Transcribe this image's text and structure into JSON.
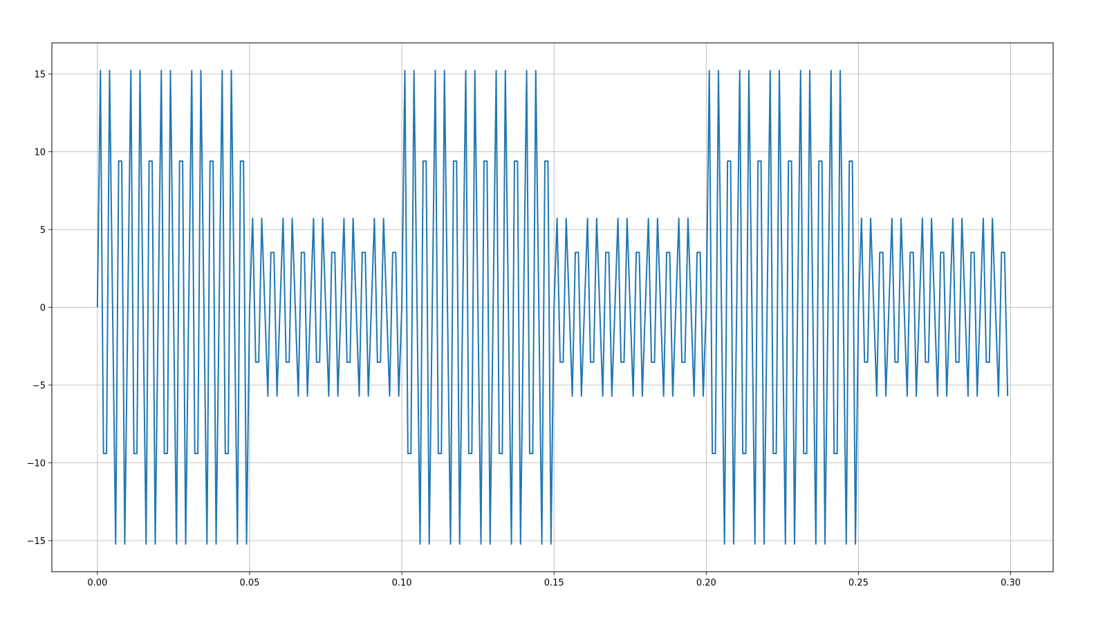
{
  "chart_data": {
    "type": "line",
    "x": [
      0,
      0.001,
      0.002,
      0.003,
      0.004,
      0.005,
      0.006,
      0.007,
      0.008,
      0.009,
      0.01,
      0.011,
      0.012,
      0.013,
      0.014,
      0.015,
      0.016,
      0.017,
      0.018,
      0.019,
      0.02,
      0.021,
      0.022,
      0.023,
      0.024,
      0.025,
      0.026,
      0.027,
      0.028,
      0.029,
      0.03,
      0.031,
      0.032,
      0.033,
      0.034,
      0.035,
      0.036,
      0.037,
      0.038,
      0.039,
      0.04,
      0.041,
      0.042,
      0.043,
      0.044,
      0.045,
      0.046,
      0.047,
      0.048,
      0.049,
      0.05,
      0.051,
      0.052,
      0.053,
      0.054,
      0.055,
      0.056,
      0.057,
      0.058,
      0.059,
      0.06,
      0.061,
      0.062,
      0.063,
      0.064,
      0.065,
      0.066,
      0.067,
      0.068,
      0.069,
      0.07,
      0.071,
      0.072,
      0.073,
      0.074,
      0.075,
      0.076,
      0.077,
      0.078,
      0.079,
      0.08,
      0.081,
      0.082,
      0.083,
      0.084,
      0.085,
      0.086,
      0.087,
      0.088,
      0.089,
      0.09,
      0.091,
      0.092,
      0.093,
      0.094,
      0.095,
      0.096,
      0.097,
      0.098,
      0.099,
      0.1,
      0.101,
      0.102,
      0.103,
      0.104,
      0.105,
      0.106,
      0.107,
      0.108,
      0.109,
      0.11,
      0.111,
      0.112,
      0.113,
      0.114,
      0.115,
      0.116,
      0.117,
      0.118,
      0.119,
      0.12,
      0.121,
      0.122,
      0.123,
      0.124,
      0.125,
      0.126,
      0.127,
      0.128,
      0.129,
      0.13,
      0.131,
      0.132,
      0.133,
      0.134,
      0.135,
      0.136,
      0.137,
      0.138,
      0.139,
      0.14,
      0.141,
      0.142,
      0.143,
      0.144,
      0.145,
      0.146,
      0.147,
      0.148,
      0.149,
      0.15,
      0.151,
      0.152,
      0.153,
      0.154,
      0.155,
      0.156,
      0.157,
      0.158,
      0.159,
      0.16,
      0.161,
      0.162,
      0.163,
      0.164,
      0.165,
      0.166,
      0.167,
      0.168,
      0.169,
      0.17,
      0.171,
      0.172,
      0.173,
      0.174,
      0.175,
      0.176,
      0.177,
      0.178,
      0.179,
      0.18,
      0.181,
      0.182,
      0.183,
      0.184,
      0.185,
      0.186,
      0.187,
      0.188,
      0.189,
      0.19,
      0.191,
      0.192,
      0.193,
      0.194,
      0.195,
      0.196,
      0.197,
      0.198,
      0.199,
      0.2,
      0.201,
      0.202,
      0.203,
      0.204,
      0.205,
      0.206,
      0.207,
      0.208,
      0.209,
      0.21,
      0.211,
      0.212,
      0.213,
      0.214,
      0.215,
      0.216,
      0.217,
      0.218,
      0.219,
      0.22,
      0.221,
      0.222,
      0.223,
      0.224,
      0.225,
      0.226,
      0.227,
      0.228,
      0.229,
      0.23,
      0.231,
      0.232,
      0.233,
      0.234,
      0.235,
      0.236,
      0.237,
      0.238,
      0.239,
      0.24,
      0.241,
      0.242,
      0.243,
      0.244,
      0.245,
      0.246,
      0.247,
      0.248,
      0.249,
      0.25,
      0.251,
      0.252,
      0.253,
      0.254,
      0.255,
      0.256,
      0.257,
      0.258,
      0.259,
      0.26,
      0.261,
      0.262,
      0.263,
      0.264,
      0.265,
      0.266,
      0.267,
      0.268,
      0.269,
      0.27,
      0.271,
      0.272,
      0.273,
      0.274,
      0.275,
      0.276,
      0.277,
      0.278,
      0.279,
      0.28,
      0.281,
      0.282,
      0.283,
      0.284,
      0.285,
      0.286,
      0.287,
      0.288,
      0.289,
      0.29,
      0.291,
      0.292,
      0.293,
      0.294,
      0.295,
      0.296,
      0.297,
      0.298,
      0.299
    ],
    "series": [
      {
        "color": "#1f77b4",
        "values": [
          0,
          15.22,
          -9.4,
          -9.4,
          15.22,
          0,
          -15.22,
          9.4,
          9.4,
          -15.22,
          0,
          15.22,
          -9.4,
          -9.4,
          15.22,
          0,
          -15.22,
          9.4,
          9.4,
          -15.22,
          0,
          15.22,
          -9.4,
          -9.4,
          15.22,
          0,
          -15.22,
          9.4,
          9.4,
          -15.22,
          0,
          15.22,
          -9.4,
          -9.4,
          15.22,
          0,
          -15.22,
          9.4,
          9.4,
          -15.22,
          0,
          15.22,
          -9.4,
          -9.4,
          15.22,
          0,
          -15.22,
          9.4,
          9.4,
          -15.22,
          0,
          5.71,
          -3.53,
          -3.53,
          5.71,
          0,
          -5.71,
          3.53,
          3.53,
          -5.71,
          0,
          5.71,
          -3.53,
          -3.53,
          5.71,
          0,
          -5.71,
          3.53,
          3.53,
          -5.71,
          0,
          5.71,
          -3.53,
          -3.53,
          5.71,
          0,
          -5.71,
          3.53,
          3.53,
          -5.71,
          0,
          5.71,
          -3.53,
          -3.53,
          5.71,
          0,
          -5.71,
          3.53,
          3.53,
          -5.71,
          0,
          5.71,
          -3.53,
          -3.53,
          5.71,
          0,
          -5.71,
          3.53,
          3.53,
          -5.71,
          0,
          15.22,
          -9.4,
          -9.4,
          15.22,
          0,
          -15.22,
          9.4,
          9.4,
          -15.22,
          0,
          15.22,
          -9.4,
          -9.4,
          15.22,
          0,
          -15.22,
          9.4,
          9.4,
          -15.22,
          0,
          15.22,
          -9.4,
          -9.4,
          15.22,
          0,
          -15.22,
          9.4,
          9.4,
          -15.22,
          0,
          15.22,
          -9.4,
          -9.4,
          15.22,
          0,
          -15.22,
          9.4,
          9.4,
          -15.22,
          0,
          15.22,
          -9.4,
          -9.4,
          15.22,
          0,
          -15.22,
          9.4,
          9.4,
          -15.22,
          0,
          5.71,
          -3.53,
          -3.53,
          5.71,
          0,
          -5.71,
          3.53,
          3.53,
          -5.71,
          0,
          5.71,
          -3.53,
          -3.53,
          5.71,
          0,
          -5.71,
          3.53,
          3.53,
          -5.71,
          0,
          5.71,
          -3.53,
          -3.53,
          5.71,
          0,
          -5.71,
          3.53,
          3.53,
          -5.71,
          0,
          5.71,
          -3.53,
          -3.53,
          5.71,
          0,
          -5.71,
          3.53,
          3.53,
          -5.71,
          0,
          5.71,
          -3.53,
          -3.53,
          5.71,
          0,
          -5.71,
          3.53,
          3.53,
          -5.71,
          0,
          15.22,
          -9.4,
          -9.4,
          15.22,
          0,
          -15.22,
          9.4,
          9.4,
          -15.22,
          0,
          15.22,
          -9.4,
          -9.4,
          15.22,
          0,
          -15.22,
          9.4,
          9.4,
          -15.22,
          0,
          15.22,
          -9.4,
          -9.4,
          15.22,
          0,
          -15.22,
          9.4,
          9.4,
          -15.22,
          0,
          15.22,
          -9.4,
          -9.4,
          15.22,
          0,
          -15.22,
          9.4,
          9.4,
          -15.22,
          0,
          15.22,
          -9.4,
          -9.4,
          15.22,
          0,
          -15.22,
          9.4,
          9.4,
          -15.22,
          0,
          5.71,
          -3.53,
          -3.53,
          5.71,
          0,
          -5.71,
          3.53,
          3.53,
          -5.71,
          0,
          5.71,
          -3.53,
          -3.53,
          5.71,
          0,
          -5.71,
          3.53,
          3.53,
          -5.71,
          0,
          5.71,
          -3.53,
          -3.53,
          5.71,
          0,
          -5.71,
          3.53,
          3.53,
          -5.71,
          0,
          5.71,
          -3.53,
          -3.53,
          5.71,
          0,
          -5.71,
          3.53,
          3.53,
          -5.71,
          0,
          5.71,
          -3.53,
          -3.53,
          5.71,
          0,
          -5.71,
          3.53,
          3.53,
          -5.71
        ]
      }
    ],
    "xlim": [
      -0.01495,
      0.31395
    ],
    "xticks": [
      {
        "value": 0,
        "label": "0.00"
      },
      {
        "value": 0.05,
        "label": "0.05"
      },
      {
        "value": 0.1,
        "label": "0.10"
      },
      {
        "value": 0.15,
        "label": "0.15"
      },
      {
        "value": 0.2,
        "label": "0.20"
      },
      {
        "value": 0.25,
        "label": "0.25"
      },
      {
        "value": 0.3,
        "label": "0.30"
      }
    ],
    "ylim": [
      -17,
      17
    ],
    "yticks": [
      {
        "value": -15,
        "label": "−15"
      },
      {
        "value": -10,
        "label": "−10"
      },
      {
        "value": -5,
        "label": "−5"
      },
      0,
      5,
      10,
      15
    ],
    "grid": true
  }
}
